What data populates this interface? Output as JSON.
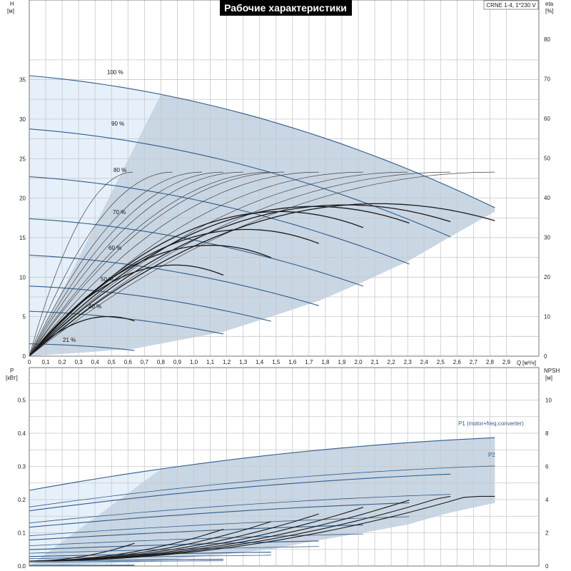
{
  "title": "Рабочие характеристики",
  "pump_label": "CRNE 1-4, 1*230 V",
  "top_chart": {
    "left_axis": {
      "name": "H",
      "unit": "[м]",
      "ticks": [
        "0",
        "5",
        "10",
        "15",
        "20",
        "25",
        "30",
        "35"
      ]
    },
    "right_axis": {
      "name": "eta",
      "unit": "[%]",
      "ticks": [
        "0",
        "10",
        "20",
        "30",
        "40",
        "50",
        "60",
        "70",
        "80"
      ]
    },
    "x_axis": {
      "name": "Q",
      "unit": "[м³/ч]",
      "ticks": [
        "0",
        "0,1",
        "0,2",
        "0,3",
        "0,4",
        "0,5",
        "0,6",
        "0,7",
        "0,8",
        "0,9",
        "1,0",
        "1,1",
        "1,2",
        "1,3",
        "1,4",
        "1,5",
        "1,6",
        "1,7",
        "1,8",
        "1,9",
        "2,0",
        "2,1",
        "2,2",
        "2,3",
        "2,4",
        "2,5",
        "2,6",
        "2,7",
        "2,8",
        "2,9"
      ]
    },
    "speed_labels": [
      "100 %",
      "90 %",
      "80 %",
      "70 %",
      "60 %",
      "50 %",
      "40 %",
      "21 %"
    ]
  },
  "bottom_chart": {
    "left_axis": {
      "name": "P",
      "unit": "[кВт]",
      "ticks": [
        "0.0",
        "0.1",
        "0.2",
        "0.3",
        "0.4",
        "0.5"
      ]
    },
    "right_axis": {
      "name": "NPSH",
      "unit": "[м]",
      "ticks": [
        "0",
        "2",
        "4",
        "6",
        "8",
        "10"
      ]
    },
    "series_labels": {
      "p1": "P1 (motor+freq.converter)",
      "p2": "P2"
    }
  },
  "colors": {
    "envelope_light": "#e6f0fa",
    "envelope_dark": "#c9d6e4",
    "qh_curve": "#2f5d8c",
    "eta_curve": "#1a1a1a",
    "thin_curve": "#444444"
  },
  "chart_data": [
    {
      "type": "line",
      "title": "Рабочие характеристики",
      "xlabel": "Q [м³/ч]",
      "ylabel": "H [м]",
      "xlim": [
        0,
        3.1
      ],
      "ylim": [
        0,
        38
      ],
      "y2label": "eta [%]",
      "y2lim": [
        0,
        90
      ],
      "speeds": [
        "100 %",
        "90 %",
        "80 %",
        "70 %",
        "60 %",
        "50 %",
        "40 %",
        "21 %"
      ],
      "series": [
        {
          "name": "100 %",
          "x": [
            0,
            0.5,
            0.8,
            1.2,
            1.6,
            2.0,
            2.4,
            2.83
          ],
          "values": [
            35.5,
            35.0,
            34.5,
            32.5,
            29.5,
            26.0,
            22.5,
            18.3
          ]
        },
        {
          "name": "90 %",
          "x": [
            0,
            0.5,
            1.0,
            1.5,
            2.0,
            2.55
          ],
          "values": [
            29.0,
            28.6,
            27.6,
            25.5,
            22.5,
            15.0
          ]
        },
        {
          "name": "80 %",
          "x": [
            0,
            0.5,
            1.0,
            1.5,
            2.0,
            2.3
          ],
          "values": [
            23.2,
            22.8,
            21.5,
            19.5,
            16.0,
            12.0
          ]
        },
        {
          "name": "70 %",
          "x": [
            0,
            0.5,
            1.0,
            1.5,
            2.0
          ],
          "values": [
            17.9,
            17.5,
            16.5,
            13.5,
            9.5
          ]
        },
        {
          "name": "60 %",
          "x": [
            0,
            0.5,
            1.0,
            1.5,
            1.75
          ],
          "values": [
            13.1,
            12.8,
            11.5,
            9.0,
            7.0
          ]
        },
        {
          "name": "50 %",
          "x": [
            0,
            0.5,
            1.0,
            1.47
          ],
          "values": [
            9.2,
            8.8,
            7.5,
            5.0
          ]
        },
        {
          "name": "40 %",
          "x": [
            0,
            0.5,
            1.0,
            1.18
          ],
          "values": [
            5.9,
            5.5,
            4.0,
            3.1
          ]
        },
        {
          "name": "21 %",
          "x": [
            0,
            0.3,
            0.64
          ],
          "values": [
            1.6,
            1.4,
            0.9
          ]
        }
      ]
    },
    {
      "type": "line",
      "xlabel": "Q [м³/ч]",
      "ylabel": "P [кВт]",
      "xlim": [
        0,
        3.1
      ],
      "ylim": [
        0,
        0.55
      ],
      "y2label": "NPSH [м]",
      "y2lim": [
        0,
        11
      ],
      "series": [
        {
          "name": "P1 (motor+freq.converter)",
          "x": [
            0,
            0.8,
            1.5,
            2.2,
            2.83
          ],
          "values": [
            0.228,
            0.305,
            0.37,
            0.41,
            0.42
          ]
        },
        {
          "name": "P2",
          "x": [
            0,
            0.8,
            1.5,
            2.2,
            2.83
          ],
          "values": [
            0.175,
            0.24,
            0.295,
            0.335,
            0.345
          ]
        }
      ]
    }
  ]
}
